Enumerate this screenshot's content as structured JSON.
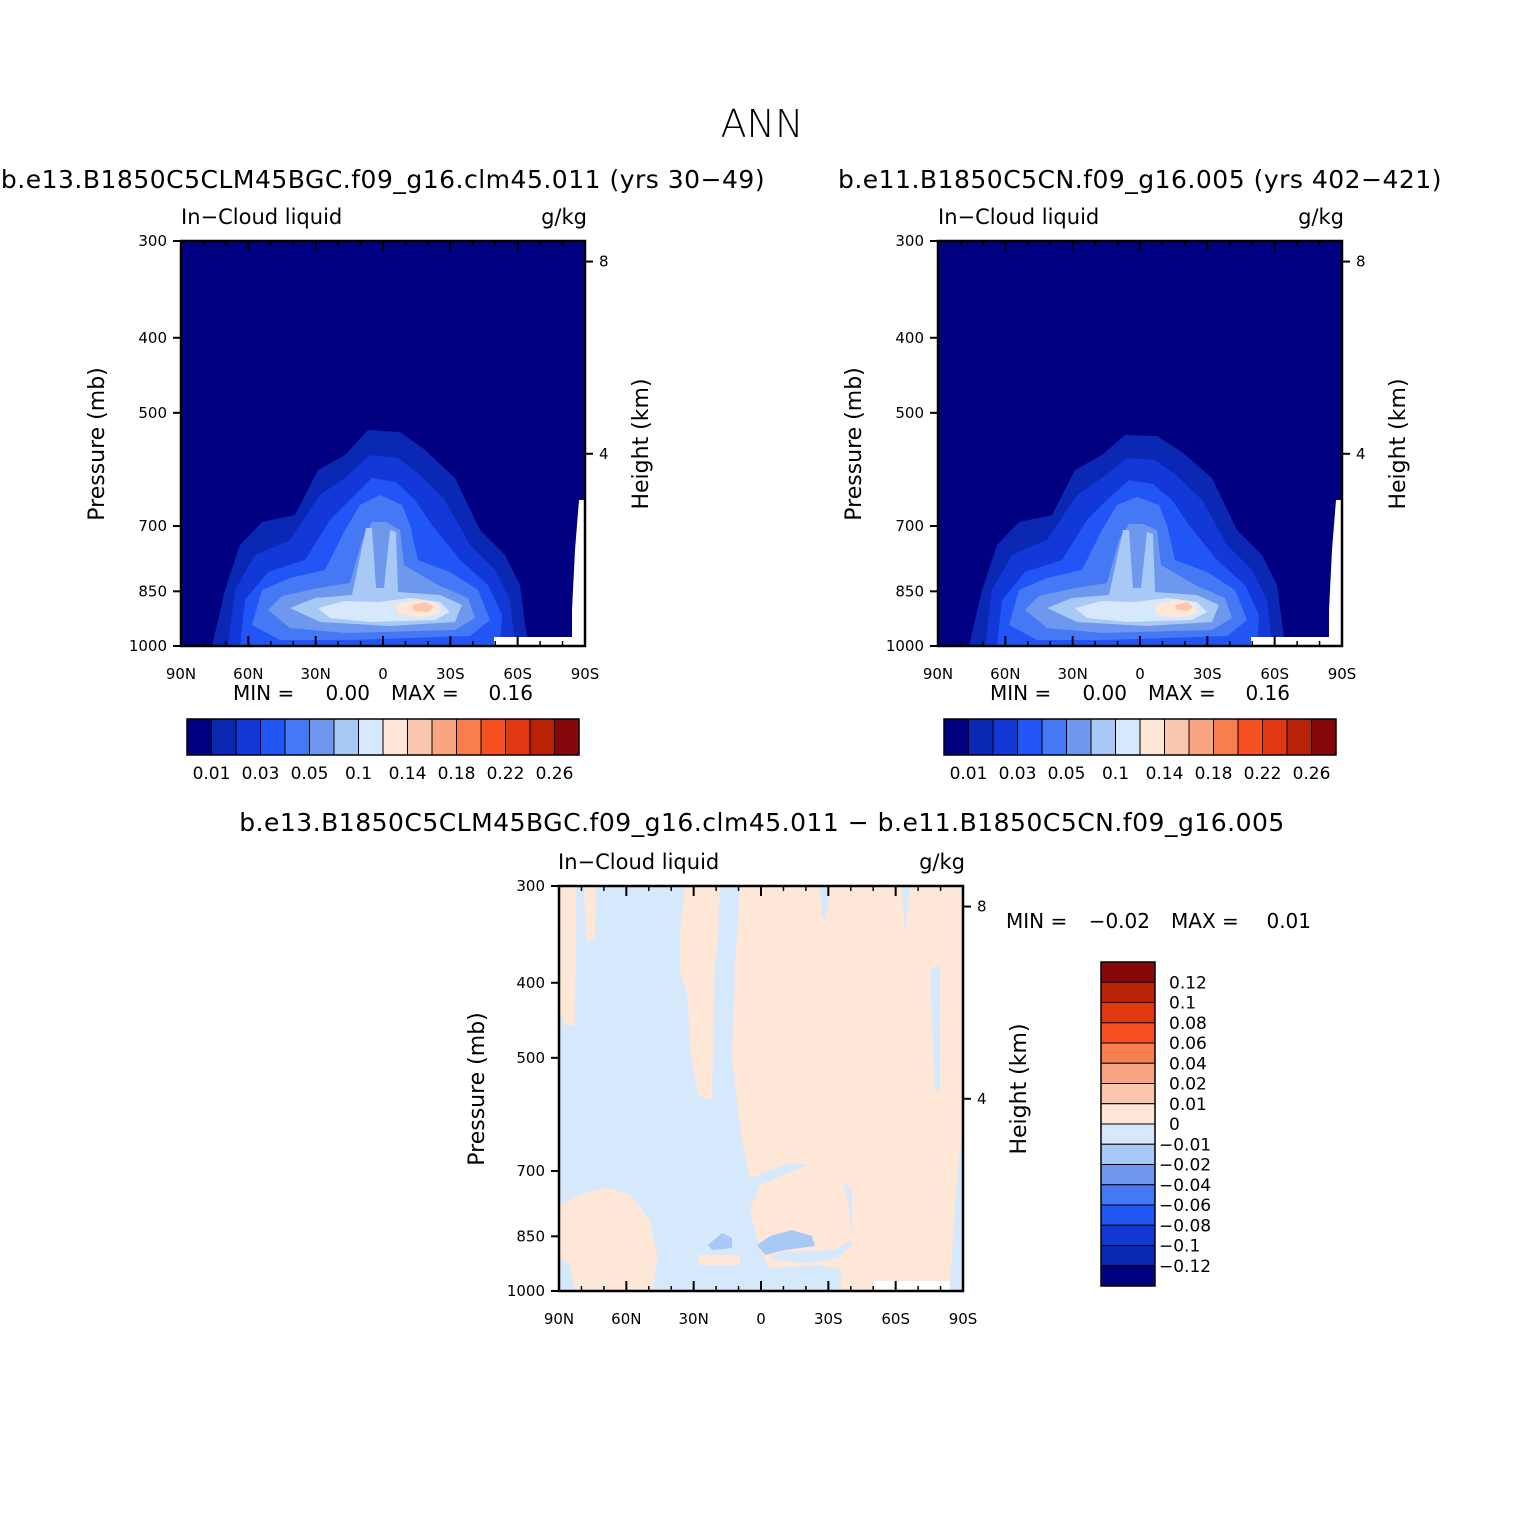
{
  "figure": {
    "title": "ANN",
    "colors": {
      "background": "#ffffff",
      "field_background": "#000080",
      "axes": "#000000"
    }
  },
  "chart_data": [
    {
      "type": "heatmap",
      "title": "b.e13.B1850C5CLM45BGC.f09_g16.clm45.011 (yrs 30-49)",
      "variable": "In-Cloud liquid",
      "units": "g/kg",
      "xlabel": "",
      "ylabel": "Pressure (mb)",
      "y2label": "Height (km)",
      "xticks": [
        "90N",
        "60N",
        "30N",
        "0",
        "30S",
        "60S",
        "90S"
      ],
      "yticks": [
        300,
        400,
        500,
        700,
        850,
        1000
      ],
      "y2ticks": [
        8,
        4
      ],
      "stats": {
        "min_label": "MIN =",
        "min": "0.00",
        "max_label": "MAX =",
        "max": "0.16"
      },
      "colorbar": {
        "orientation": "horizontal",
        "labels": [
          "0.01",
          "0.03",
          "0.05",
          "0.1",
          "0.14",
          "0.18",
          "0.22",
          "0.26"
        ],
        "colors": [
          "#000080",
          "#0a28b4",
          "#1239d8",
          "#2255f5",
          "#4478f5",
          "#6d98ee",
          "#a8c8f5",
          "#d6e8fb",
          "#fee7d6",
          "#fbc6ae",
          "#f9a582",
          "#f97d4e",
          "#f65021",
          "#e03810",
          "#b82308",
          "#870808"
        ]
      },
      "features": [
        {
          "level": 1,
          "color": "#0a28b4",
          "desc": "outer cloud layer envelope, 75N to 65S, surface to ~560 mb"
        },
        {
          "level": 2,
          "color": "#1239d8"
        },
        {
          "level": 3,
          "color": "#2255f5"
        },
        {
          "level": 4,
          "color": "#4478f5"
        },
        {
          "level": 5,
          "color": "#6d98ee"
        },
        {
          "level": 6,
          "color": "#a8c8f5"
        },
        {
          "level": 7,
          "color": "#d6e8fb"
        },
        {
          "level": 8,
          "color": "#fee7d6"
        },
        {
          "level": 9,
          "color": "#fbc6ae",
          "desc": "maximum near 20S, ~865 mb"
        }
      ]
    },
    {
      "type": "heatmap",
      "title": "b.e11.B1850C5CN.f09_g16.005 (yrs 402-421)",
      "variable": "In-Cloud liquid",
      "units": "g/kg",
      "xlabel": "",
      "ylabel": "Pressure (mb)",
      "y2label": "Height (km)",
      "xticks": [
        "90N",
        "60N",
        "30N",
        "0",
        "30S",
        "60S",
        "90S"
      ],
      "yticks": [
        300,
        400,
        500,
        700,
        850,
        1000
      ],
      "y2ticks": [
        8,
        4
      ],
      "stats": {
        "min_label": "MIN =",
        "min": "0.00",
        "max_label": "MAX =",
        "max": "0.16"
      },
      "colorbar": {
        "orientation": "horizontal",
        "labels": [
          "0.01",
          "0.03",
          "0.05",
          "0.1",
          "0.14",
          "0.18",
          "0.22",
          "0.26"
        ],
        "colors": [
          "#000080",
          "#0a28b4",
          "#1239d8",
          "#2255f5",
          "#4478f5",
          "#6d98ee",
          "#a8c8f5",
          "#d6e8fb",
          "#fee7d6",
          "#fbc6ae",
          "#f9a582",
          "#f97d4e",
          "#f65021",
          "#e03810",
          "#b82308",
          "#870808"
        ]
      }
    },
    {
      "type": "heatmap",
      "title": "b.e13.B1850C5CLM45BGC.f09_g16.clm45.011 - b.e11.B1850C5CN.f09_g16.005",
      "variable": "In-Cloud liquid",
      "units": "g/kg",
      "xlabel": "",
      "ylabel": "Pressure (mb)",
      "y2label": "Height (km)",
      "xticks": [
        "90N",
        "60N",
        "30N",
        "0",
        "30S",
        "60S",
        "90S"
      ],
      "yticks": [
        300,
        400,
        500,
        700,
        850,
        1000
      ],
      "y2ticks": [
        8,
        4
      ],
      "stats": {
        "min_label": "MIN =",
        "min": "-0.02",
        "max_label": "MAX =",
        "max": "0.01"
      },
      "colorbar": {
        "orientation": "vertical",
        "labels": [
          "0.12",
          "0.1",
          "0.08",
          "0.06",
          "0.04",
          "0.02",
          "0.01",
          "0",
          "-0.01",
          "-0.02",
          "-0.04",
          "-0.06",
          "-0.08",
          "-0.1",
          "-0.12"
        ],
        "colors": [
          "#870808",
          "#b82308",
          "#e03810",
          "#f65021",
          "#f97d4e",
          "#f9a582",
          "#fbc6ae",
          "#fee7d6",
          "#d6e8fb",
          "#a8c8f5",
          "#6d98ee",
          "#4478f5",
          "#2255f5",
          "#1239d8",
          "#0a28b4",
          "#000080"
        ]
      },
      "background_value_color": "#d6e8fb",
      "positive_color": "#fee7d6",
      "negative_color": "#a8c8f5"
    }
  ]
}
